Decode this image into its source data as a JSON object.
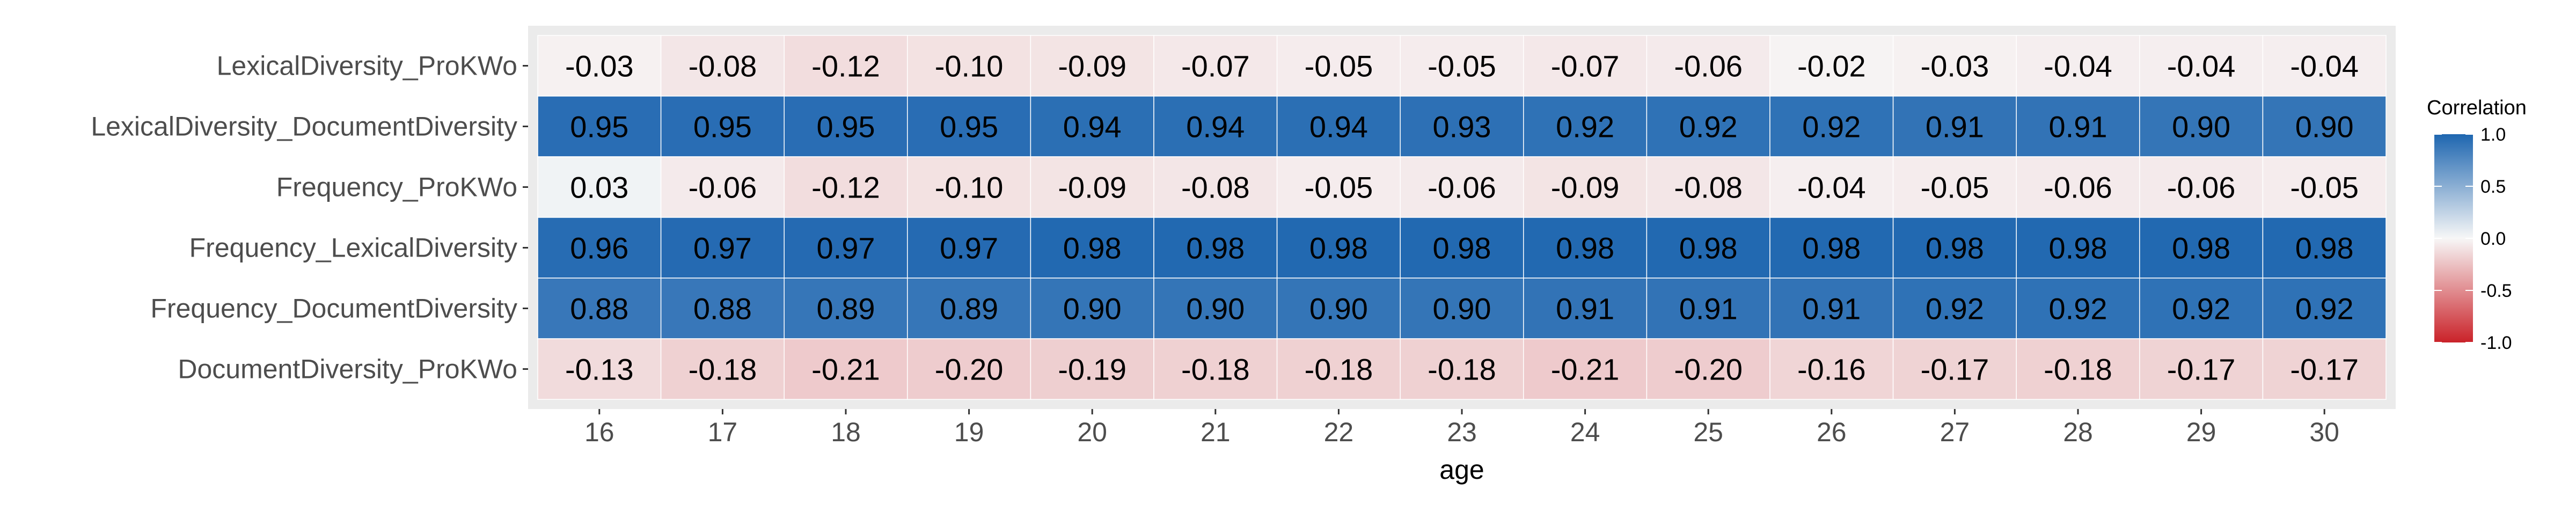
{
  "chart_data": {
    "type": "heatmap",
    "title": "",
    "xlabel": "age",
    "ylabel": "",
    "x": [
      "16",
      "17",
      "18",
      "19",
      "20",
      "21",
      "22",
      "23",
      "24",
      "25",
      "26",
      "27",
      "28",
      "29",
      "30"
    ],
    "y": [
      "LexicalDiversity_ProKWo",
      "LexicalDiversity_DocumentDiversity",
      "Frequency_ProKWo",
      "Frequency_LexicalDiversity",
      "Frequency_DocumentDiversity",
      "DocumentDiversity_ProKWo"
    ],
    "values": [
      [
        -0.03,
        -0.08,
        -0.12,
        -0.1,
        -0.09,
        -0.07,
        -0.05,
        -0.05,
        -0.07,
        -0.06,
        -0.02,
        -0.03,
        -0.04,
        -0.04,
        -0.04
      ],
      [
        0.95,
        0.95,
        0.95,
        0.95,
        0.94,
        0.94,
        0.94,
        0.93,
        0.92,
        0.92,
        0.92,
        0.91,
        0.91,
        0.9,
        0.9
      ],
      [
        0.03,
        -0.06,
        -0.12,
        -0.1,
        -0.09,
        -0.08,
        -0.05,
        -0.06,
        -0.09,
        -0.08,
        -0.04,
        -0.05,
        -0.06,
        -0.06,
        -0.05
      ],
      [
        0.96,
        0.97,
        0.97,
        0.97,
        0.98,
        0.98,
        0.98,
        0.98,
        0.98,
        0.98,
        0.98,
        0.98,
        0.98,
        0.98,
        0.98
      ],
      [
        0.88,
        0.88,
        0.89,
        0.89,
        0.9,
        0.9,
        0.9,
        0.9,
        0.91,
        0.91,
        0.91,
        0.92,
        0.92,
        0.92,
        0.92
      ],
      [
        -0.13,
        -0.18,
        -0.21,
        -0.2,
        -0.19,
        -0.18,
        -0.18,
        -0.18,
        -0.21,
        -0.2,
        -0.16,
        -0.17,
        -0.18,
        -0.17,
        -0.17
      ]
    ],
    "value_labels": [
      [
        "-0.03",
        "-0.08",
        "-0.12",
        "-0.10",
        "-0.09",
        "-0.07",
        "-0.05",
        "-0.05",
        "-0.07",
        "-0.06",
        "-0.02",
        "-0.03",
        "-0.04",
        "-0.04",
        "-0.04"
      ],
      [
        "0.95",
        "0.95",
        "0.95",
        "0.95",
        "0.94",
        "0.94",
        "0.94",
        "0.93",
        "0.92",
        "0.92",
        "0.92",
        "0.91",
        "0.91",
        "0.90",
        "0.90"
      ],
      [
        "0.03",
        "-0.06",
        "-0.12",
        "-0.10",
        "-0.09",
        "-0.08",
        "-0.05",
        "-0.06",
        "-0.09",
        "-0.08",
        "-0.04",
        "-0.05",
        "-0.06",
        "-0.06",
        "-0.05"
      ],
      [
        "0.96",
        "0.97",
        "0.97",
        "0.97",
        "0.98",
        "0.98",
        "0.98",
        "0.98",
        "0.98",
        "0.98",
        "0.98",
        "0.98",
        "0.98",
        "0.98",
        "0.98"
      ],
      [
        "0.88",
        "0.88",
        "0.89",
        "0.89",
        "0.90",
        "0.90",
        "0.90",
        "0.90",
        "0.91",
        "0.91",
        "0.91",
        "0.92",
        "0.92",
        "0.92",
        "0.92"
      ],
      [
        "-0.13",
        "-0.18",
        "-0.21",
        "-0.20",
        "-0.19",
        "-0.18",
        "-0.18",
        "-0.18",
        "-0.21",
        "-0.20",
        "-0.16",
        "-0.17",
        "-0.18",
        "-0.17",
        "-0.17"
      ]
    ],
    "legend": {
      "title": "Correlation",
      "placement": "right",
      "range": [
        -1.0,
        1.0
      ],
      "breaks": [
        1.0,
        0.5,
        0.0,
        -0.5,
        -1.0
      ],
      "break_labels": [
        "1.0",
        "0.5",
        "0.0",
        "-0.5",
        "-1.0"
      ],
      "colors": {
        "low": "#ca2229",
        "mid": "#f7f7f7",
        "high": "#1e66b0"
      }
    },
    "grid": true,
    "colors": {
      "panel_background": "#ebebeb",
      "text": "#000000",
      "axis_text": "#4d4d4d"
    }
  }
}
